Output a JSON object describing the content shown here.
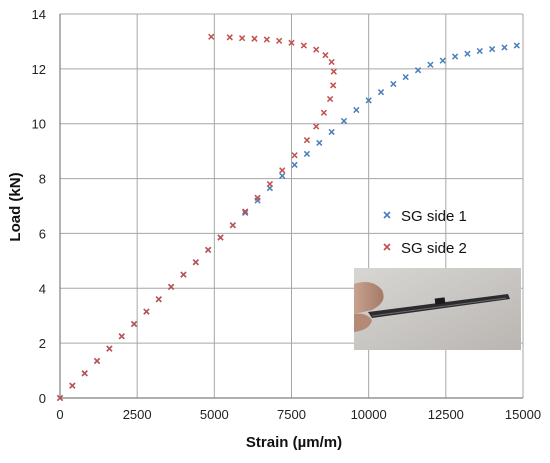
{
  "chart_data": {
    "type": "scatter",
    "title": "",
    "xlabel": "Strain (µm/m)",
    "ylabel": "Load (kN)",
    "xlim": [
      0,
      15000
    ],
    "ylim": [
      0,
      14
    ],
    "xticks": [
      0,
      2500,
      5000,
      7500,
      10000,
      12500,
      15000
    ],
    "yticks": [
      0,
      2,
      4,
      6,
      8,
      10,
      12,
      14
    ],
    "grid": true,
    "legend_position": "right",
    "inset_photo": true,
    "series": [
      {
        "name": "SG side 1",
        "color": "#4a7ebb",
        "marker": "x",
        "x": [
          0,
          400,
          800,
          1200,
          1600,
          2000,
          2400,
          2800,
          3200,
          3600,
          4000,
          4400,
          4800,
          5200,
          5600,
          6000,
          6400,
          6800,
          7200,
          7600,
          8000,
          8400,
          8800,
          9200,
          9600,
          10000,
          10400,
          10800,
          11200,
          11600,
          12000,
          12400,
          12800,
          13200,
          13600,
          14000,
          14400,
          14800
        ],
        "y": [
          0,
          0.45,
          0.9,
          1.35,
          1.8,
          2.25,
          2.7,
          3.15,
          3.6,
          4.05,
          4.5,
          4.95,
          5.4,
          5.85,
          6.3,
          6.75,
          7.2,
          7.65,
          8.1,
          8.5,
          8.9,
          9.3,
          9.7,
          10.1,
          10.5,
          10.85,
          11.15,
          11.45,
          11.7,
          11.95,
          12.15,
          12.3,
          12.45,
          12.55,
          12.65,
          12.72,
          12.78,
          12.85
        ]
      },
      {
        "name": "SG side 2",
        "color": "#c0504d",
        "marker": "x",
        "x": [
          0,
          400,
          800,
          1200,
          1600,
          2000,
          2400,
          2800,
          3200,
          3600,
          4000,
          4400,
          4800,
          5200,
          5600,
          6000,
          6400,
          6800,
          7200,
          7600,
          8000,
          8300,
          8550,
          8750,
          8850,
          8870,
          8800,
          8600,
          8300,
          7900,
          7500,
          7100,
          6700,
          6300,
          5900,
          5500,
          4900
        ],
        "y": [
          0,
          0.45,
          0.9,
          1.35,
          1.8,
          2.25,
          2.7,
          3.15,
          3.6,
          4.05,
          4.5,
          4.95,
          5.4,
          5.85,
          6.3,
          6.8,
          7.3,
          7.8,
          8.3,
          8.85,
          9.4,
          9.9,
          10.4,
          10.9,
          11.4,
          11.9,
          12.25,
          12.5,
          12.7,
          12.85,
          12.95,
          13.02,
          13.07,
          13.1,
          13.12,
          13.15,
          13.17
        ]
      }
    ]
  }
}
